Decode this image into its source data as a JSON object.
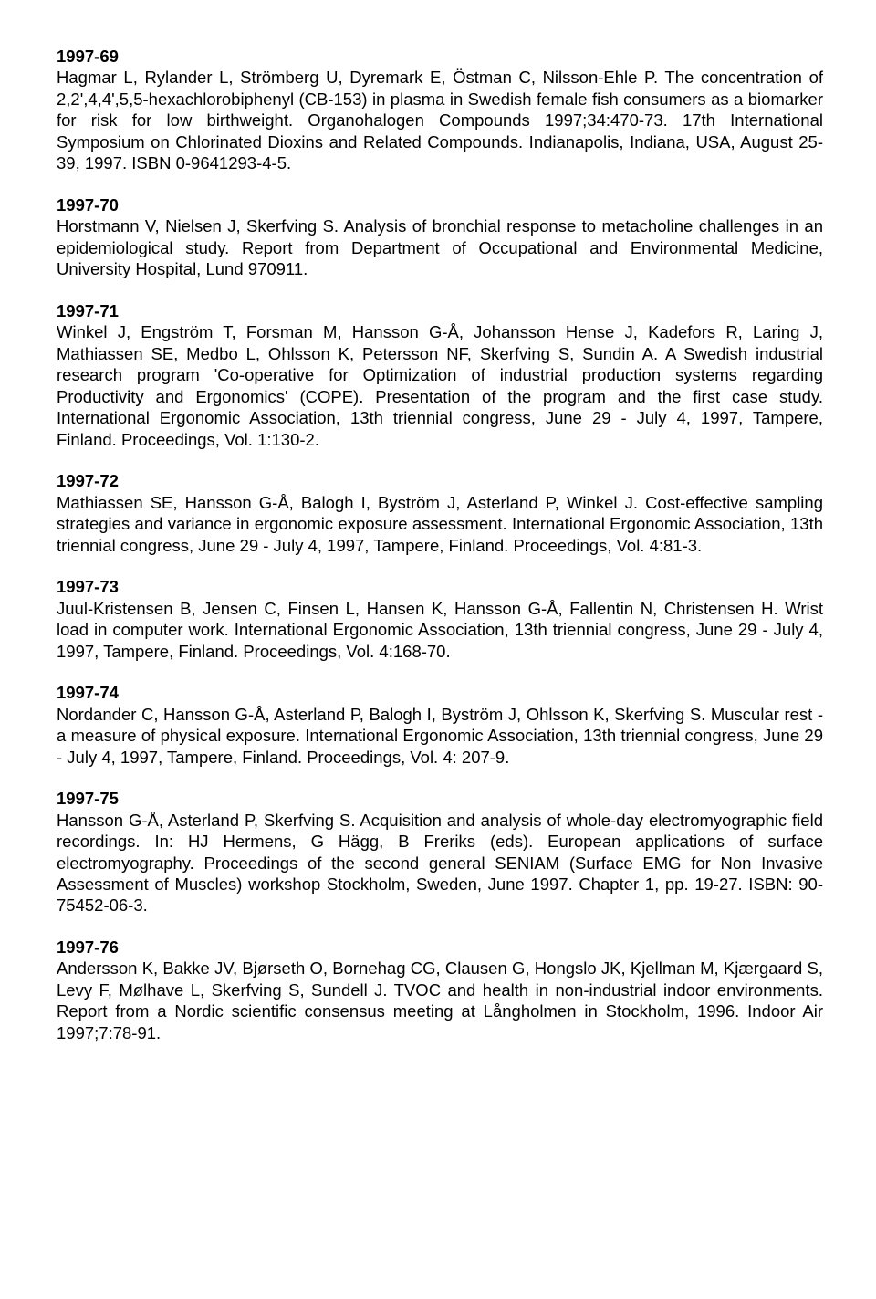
{
  "entries": [
    {
      "id": "1997-69",
      "body": "Hagmar L, Rylander L, Strömberg U, Dyremark E, Östman C, Nilsson-Ehle P. The concentration of 2,2',4,4',5,5-hexachlorobiphenyl (CB-153) in plasma in Swedish female fish consumers as a biomarker for risk for low birthweight. Organohalogen Compounds 1997;34:470-73. 17th International Symposium on Chlorinated Dioxins and Related Compounds. Indianapolis, Indiana, USA, August 25-39, 1997. ISBN 0-9641293-4-5."
    },
    {
      "id": "1997-70",
      "body": "Horstmann V, Nielsen J, Skerfving S. Analysis of bronchial response to metacholine challenges in an epidemiological study. Report from Department of Occupational and Environmental Medicine, University Hospital, Lund 970911."
    },
    {
      "id": "1997-71",
      "body": "Winkel J, Engström T, Forsman M, Hansson G-Å, Johansson Hense J, Kadefors R, Laring J, Mathiassen SE, Medbo L, Ohlsson K, Petersson NF, Skerfving S, Sundin A. A Swedish industrial research program 'Co-operative for Optimization of industrial production systems regarding Productivity and Ergonomics' (COPE). Presentation of the program and the first case study. International Ergonomic Association, 13th triennial congress, June 29 - July 4, 1997, Tampere, Finland. Proceedings, Vol. 1:130-2."
    },
    {
      "id": "1997-72",
      "body": "Mathiassen SE, Hansson G-Å, Balogh I, Byström J, Asterland P, Winkel J. Cost-effective sampling strategies and variance in ergonomic exposure assessment. International Ergonomic Association, 13th triennial congress, June 29 - July 4, 1997, Tampere, Finland. Proceedings, Vol. 4:81-3."
    },
    {
      "id": "1997-73",
      "body": "Juul-Kristensen B, Jensen C, Finsen L, Hansen K, Hansson G-Å, Fallentin N, Christensen H. Wrist load in computer work. International Ergonomic Association, 13th triennial congress, June 29 - July 4, 1997, Tampere, Finland. Proceedings, Vol. 4:168-70."
    },
    {
      "id": "1997-74",
      "body": "Nordander C, Hansson G-Å, Asterland P, Balogh I, Byström J, Ohlsson K, Skerfving S. Muscular rest - a measure of physical exposure. International Ergonomic Association, 13th triennial congress, June 29 - July 4, 1997, Tampere, Finland. Proceedings, Vol. 4: 207-9."
    },
    {
      "id": "1997-75",
      "body": "Hansson G-Å, Asterland P, Skerfving S. Acquisition and analysis of whole-day electromyographic field recordings. In: HJ Hermens, G Hägg, B Freriks (eds). European applications of surface electromyography. Proceedings of the second general SENIAM (Surface EMG for Non Invasive Assessment of Muscles) workshop Stockholm, Sweden, June 1997. Chapter 1, pp. 19-27. ISBN: 90-75452-06-3."
    },
    {
      "id": "1997-76",
      "body": "Andersson K, Bakke JV, Bjørseth O, Bornehag CG, Clausen G, Hongslo JK, Kjellman M, Kjærgaard S, Levy F, Mølhave L, Skerfving S, Sundell J. TVOC and health in non-industrial indoor environments. Report from a Nordic scientific consensus meeting at Långholmen in Stockholm, 1996. Indoor Air 1997;7:78-91."
    }
  ]
}
